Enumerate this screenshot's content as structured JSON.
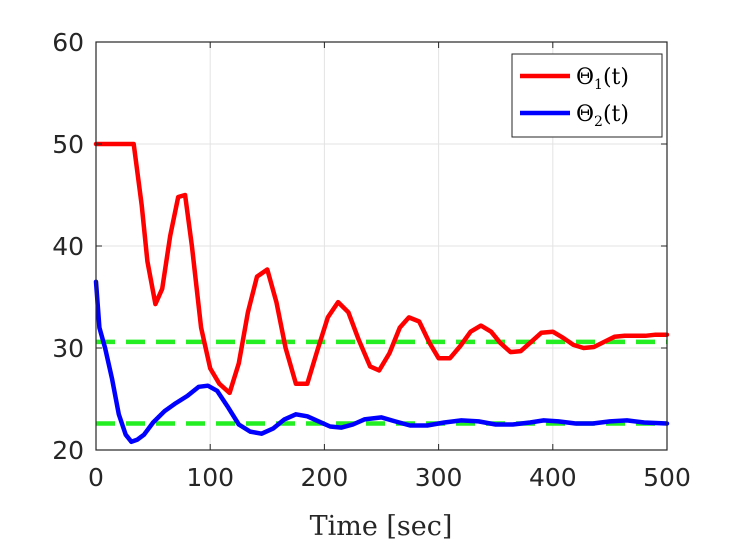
{
  "chart_data": {
    "type": "line",
    "title": "",
    "xlabel": "Time [sec]",
    "ylabel": "",
    "xlim": [
      0,
      500
    ],
    "ylim": [
      20,
      60
    ],
    "xticks": [
      "0",
      "100",
      "200",
      "300",
      "400",
      "500"
    ],
    "yticks": [
      "20",
      "30",
      "40",
      "50",
      "60"
    ],
    "grid": true,
    "legend_position": "top-right",
    "series": [
      {
        "name": "Θ1(t)",
        "name_main": "Θ",
        "name_sub": "1",
        "name_tail": "(t)",
        "color": "#ff0000",
        "style": "solid",
        "x": [
          0,
          33,
          40,
          45,
          52,
          58,
          65,
          72,
          78,
          84,
          92,
          100,
          108,
          117,
          125,
          133,
          141,
          150,
          158,
          166,
          175,
          185,
          194,
          203,
          212,
          221,
          230,
          240,
          248,
          257,
          266,
          274,
          283,
          292,
          300,
          310,
          319,
          328,
          337,
          346,
          354,
          363,
          372,
          381,
          390,
          400,
          409,
          418,
          427,
          436,
          445,
          454,
          463,
          472,
          481,
          490,
          500
        ],
        "y": [
          50,
          50,
          44,
          38.5,
          34.3,
          35.8,
          41,
          44.8,
          45,
          40,
          32,
          28,
          26.5,
          25.6,
          28.5,
          33.5,
          37,
          37.7,
          34.5,
          30,
          26.5,
          26.5,
          29.8,
          33,
          34.5,
          33.5,
          30.8,
          28.2,
          27.8,
          29.5,
          32,
          33,
          32.6,
          30.5,
          29,
          29,
          30.2,
          31.6,
          32.2,
          31.6,
          30.5,
          29.6,
          29.7,
          30.6,
          31.5,
          31.6,
          31,
          30.3,
          30,
          30.1,
          30.6,
          31.1,
          31.2,
          31.2,
          31.2,
          31.3,
          31.3
        ]
      },
      {
        "name": "Θ2(t)",
        "name_main": "Θ",
        "name_sub": "2",
        "name_tail": "(t)",
        "color": "#0000ff",
        "style": "solid",
        "x": [
          0,
          3,
          8,
          14,
          20,
          26,
          31,
          36,
          42,
          50,
          60,
          70,
          80,
          90,
          98,
          106,
          115,
          125,
          135,
          145,
          155,
          165,
          175,
          185,
          195,
          205,
          215,
          225,
          235,
          250,
          262,
          275,
          290,
          305,
          320,
          335,
          350,
          365,
          380,
          392,
          405,
          420,
          435,
          450,
          465,
          480,
          500
        ],
        "y": [
          36.5,
          32,
          30,
          27,
          23.5,
          21.5,
          20.8,
          21,
          21.5,
          22.7,
          23.8,
          24.6,
          25.3,
          26.2,
          26.3,
          25.8,
          24.3,
          22.5,
          21.8,
          21.6,
          22.1,
          23,
          23.5,
          23.3,
          22.8,
          22.3,
          22.2,
          22.5,
          23,
          23.2,
          22.8,
          22.4,
          22.4,
          22.7,
          22.9,
          22.8,
          22.5,
          22.5,
          22.7,
          22.9,
          22.8,
          22.6,
          22.6,
          22.8,
          22.9,
          22.7,
          22.6
        ]
      }
    ],
    "reference_lines": [
      {
        "y": 30.6,
        "color": "#22ee22",
        "style": "dashed"
      },
      {
        "y": 22.6,
        "color": "#22ee22",
        "style": "dashed"
      }
    ]
  }
}
